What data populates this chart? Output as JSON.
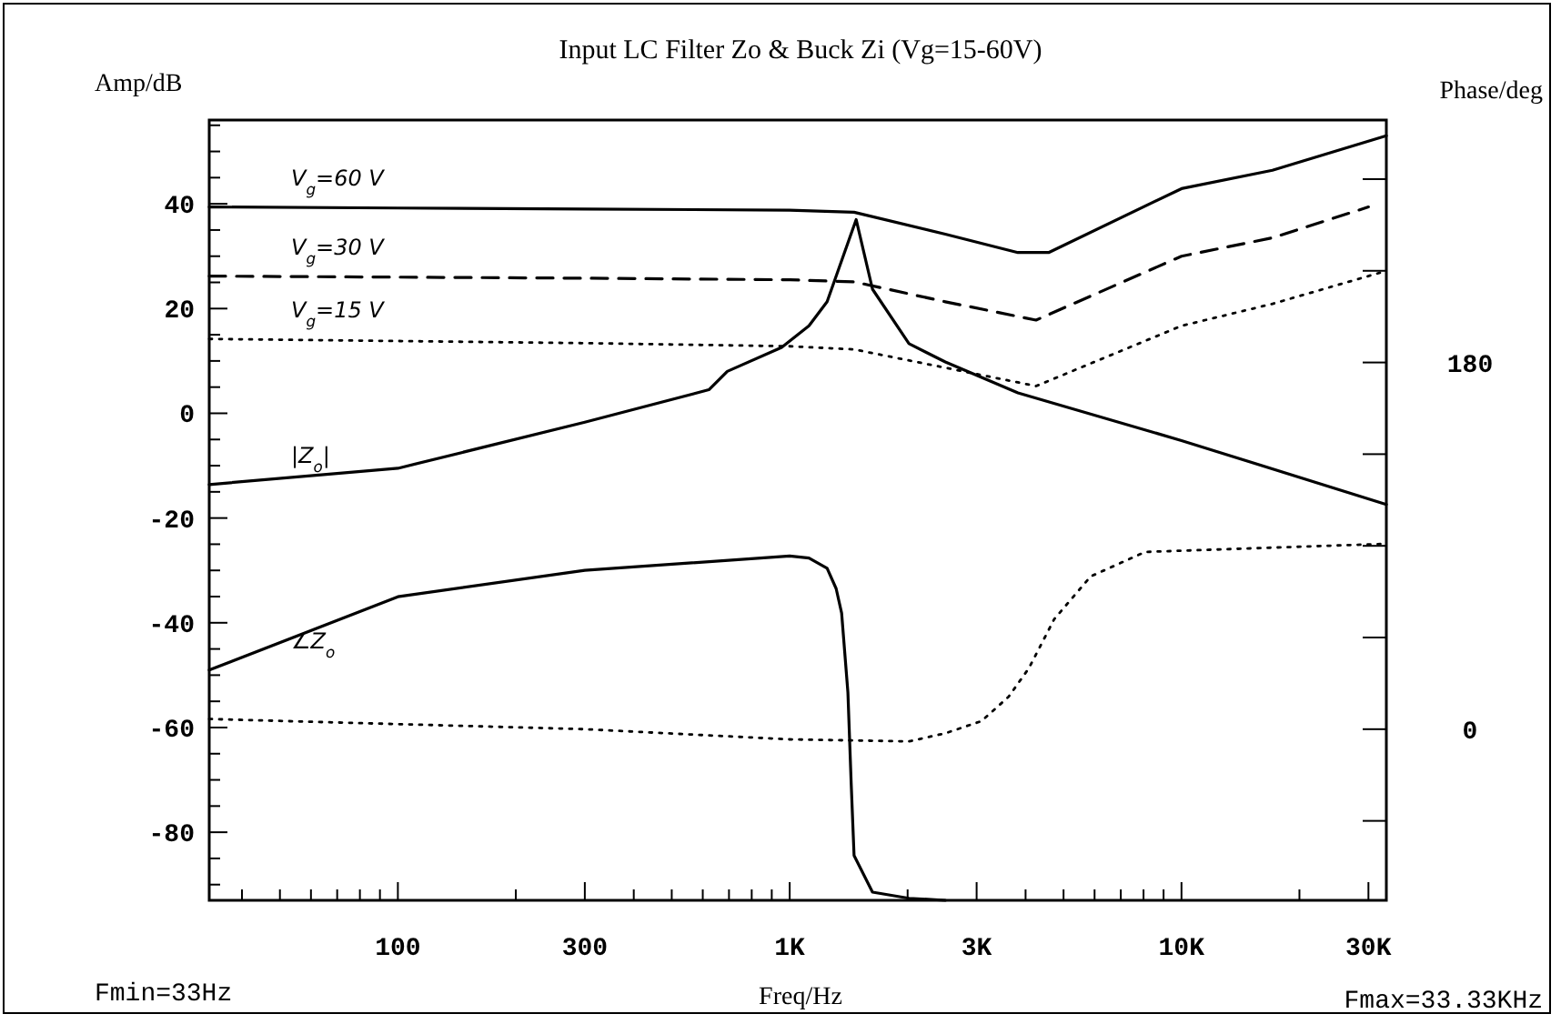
{
  "chart_data": {
    "type": "line",
    "title": "Input LC Filter Zo & Buck Zi (Vg=15-60V)",
    "xlabel": "Freq/Hz",
    "ylabel": "Amp/dB",
    "y2label": "Phase/deg",
    "annotations": [
      "Fmin=33Hz",
      "Fmax=33.33KHz"
    ],
    "log": "x",
    "xlim": [
      33,
      33330
    ],
    "ylim": [
      -93,
      56
    ],
    "y2lim": [
      -84,
      299
    ],
    "xticks": [
      {
        "value": 40,
        "label": null
      },
      {
        "value": 50,
        "label": null
      },
      {
        "value": 60,
        "label": null
      },
      {
        "value": 70,
        "label": null
      },
      {
        "value": 80,
        "label": null
      },
      {
        "value": 90,
        "label": null
      },
      100,
      {
        "value": 200,
        "label": null
      },
      300,
      {
        "value": 400,
        "label": null
      },
      {
        "value": 500,
        "label": null
      },
      {
        "value": 600,
        "label": null
      },
      {
        "value": 700,
        "label": null
      },
      {
        "value": 800,
        "label": null
      },
      {
        "value": 900,
        "label": null
      },
      {
        "value": 1000,
        "label": "1K"
      },
      {
        "value": 2000,
        "label": null
      },
      {
        "value": 3000,
        "label": "3K"
      },
      {
        "value": 4000,
        "label": null
      },
      {
        "value": 5000,
        "label": null
      },
      {
        "value": 6000,
        "label": null
      },
      {
        "value": 7000,
        "label": null
      },
      {
        "value": 8000,
        "label": null
      },
      {
        "value": 9000,
        "label": null
      },
      {
        "value": 10000,
        "label": "10K"
      },
      {
        "value": 20000,
        "label": null
      },
      {
        "value": 30000,
        "label": "30K"
      }
    ],
    "yticks": [
      {
        "value": -90,
        "label": null
      },
      {
        "value": -85,
        "label": null
      },
      -80,
      {
        "value": -75,
        "label": null
      },
      {
        "value": -70,
        "label": null
      },
      {
        "value": -65,
        "label": null
      },
      -60,
      {
        "value": -55,
        "label": null
      },
      {
        "value": -50,
        "label": null
      },
      {
        "value": -45,
        "label": null
      },
      -40,
      {
        "value": -35,
        "label": null
      },
      {
        "value": -30,
        "label": null
      },
      {
        "value": -25,
        "label": null
      },
      -20,
      {
        "value": -15,
        "label": null
      },
      {
        "value": -10,
        "label": null
      },
      {
        "value": -5,
        "label": null
      },
      0,
      {
        "value": 5,
        "label": null
      },
      {
        "value": 10,
        "label": null
      },
      {
        "value": 15,
        "label": null
      },
      20,
      {
        "value": 25,
        "label": null
      },
      {
        "value": 30,
        "label": null
      },
      {
        "value": 35,
        "label": null
      },
      40,
      {
        "value": 45,
        "label": null
      },
      {
        "value": 50,
        "label": null
      },
      {
        "value": 55,
        "label": null
      }
    ],
    "y2ticks": [
      {
        "value": -45,
        "label": null
      },
      0,
      {
        "value": 45,
        "label": null
      },
      {
        "value": 90,
        "label": null
      },
      {
        "value": 135,
        "label": null
      },
      180,
      {
        "value": 225,
        "label": null
      },
      {
        "value": 270,
        "label": null
      }
    ],
    "series": [
      {
        "name": "V$_{g}$=60 V",
        "color": "#000000",
        "line_style": "solid",
        "x": [
          33,
          100,
          300,
          1000,
          1460,
          2496,
          3824,
          4580,
          10000,
          17060,
          33330
        ],
        "values": [
          39.4,
          39.2,
          39,
          38.8,
          38.4,
          34.2,
          30.7,
          30.7,
          42.9,
          46.4,
          53
        ]
      },
      {
        "name": "V$_{g}$=30 V",
        "color": "#000000",
        "line_style": "dashed",
        "x": [
          33,
          100,
          300,
          1000,
          1460,
          2496,
          4254,
          10000,
          17060,
          30000
        ],
        "values": [
          26.2,
          26,
          25.8,
          25.5,
          25.1,
          21.3,
          17.8,
          30,
          33.5,
          39.4
        ]
      },
      {
        "name": "V$_{g}$=15 V",
        "color": "#000000",
        "line_style": "dotted",
        "x": [
          33,
          100,
          300,
          1000,
          1460,
          2496,
          4254,
          10000,
          17060,
          33330
        ],
        "values": [
          14.2,
          13.8,
          13.4,
          12.8,
          12.2,
          8.7,
          5.2,
          16.7,
          20.9,
          27.2
        ]
      },
      {
        "name": "|Z$_{o}$|",
        "color": "#000000",
        "line_style": "solid",
        "x": [
          33,
          100,
          300,
          622,
          693,
          954,
          1120,
          1246,
          1478,
          1627,
          2016,
          2496,
          3824,
          10000,
          33330
        ],
        "values": [
          -13.6,
          -10.5,
          -1.7,
          4.5,
          8,
          12.6,
          16.7,
          21.3,
          37,
          23.7,
          13.3,
          9.8,
          3.9,
          -5.2,
          -17.4
        ]
      },
      {
        "name": "∠Z$_{o}$",
        "color": "#000000",
        "line_style": "solid",
        "axis": "y2",
        "x": [
          33,
          100,
          300,
          1000,
          1120,
          1246,
          1314,
          1357,
          1408,
          1435,
          1460,
          1627,
          2016,
          2496
        ],
        "values": [
          29,
          65,
          78,
          85,
          84,
          79,
          69,
          57,
          18,
          -26,
          -62,
          -80,
          -83,
          -84
        ]
      },
      {
        "color": "#000000",
        "line_style": "dotted",
        "axis": "y2",
        "x": [
          33,
          300,
          1000,
          2016,
          2496,
          3089,
          3623,
          4080,
          4733,
          5864,
          8078,
          33330
        ],
        "values": [
          5,
          0,
          -5,
          -6,
          -2,
          4,
          16,
          30,
          54,
          75,
          87,
          91
        ]
      }
    ]
  }
}
